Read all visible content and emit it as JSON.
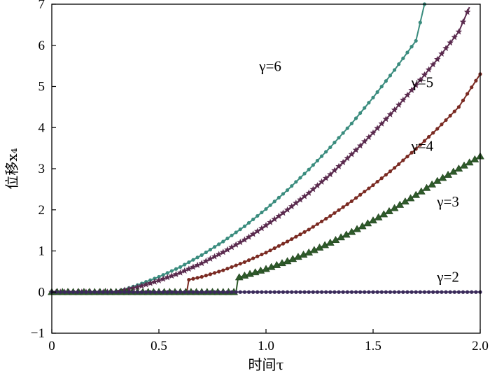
{
  "chart_data": {
    "type": "line",
    "xlabel": "时间τ",
    "ylabel": "位移x₄",
    "xlim": [
      0,
      2.0
    ],
    "ylim": [
      -1,
      7
    ],
    "x_ticks": [
      "0",
      "0.5",
      "1.0",
      "1.5",
      "2.0"
    ],
    "y_ticks": [
      "−1",
      "0",
      "1",
      "2",
      "3",
      "4",
      "5",
      "6",
      "7"
    ],
    "grid": false,
    "series": [
      {
        "name": "γ=6",
        "color": "#3a8c7e",
        "marker": "circle",
        "x": [
          0,
          0.3,
          0.35,
          0.4,
          0.5,
          0.6,
          0.7,
          0.8,
          0.9,
          1.0,
          1.1,
          1.2,
          1.3,
          1.4,
          1.5,
          1.6,
          1.7,
          1.74
        ],
        "y": [
          0,
          0,
          0.08,
          0.17,
          0.37,
          0.61,
          0.9,
          1.23,
          1.6,
          2.02,
          2.48,
          2.98,
          3.52,
          4.1,
          4.73,
          5.4,
          6.11,
          7.0
        ]
      },
      {
        "name": "γ=5",
        "color": "#5a2a4e",
        "marker": "star",
        "x": [
          0,
          0.3,
          0.4,
          0.5,
          0.6,
          0.7,
          0.8,
          0.9,
          1.0,
          1.1,
          1.2,
          1.3,
          1.4,
          1.5,
          1.6,
          1.7,
          1.8,
          1.9,
          1.95
        ],
        "y": [
          0,
          0,
          0.12,
          0.28,
          0.47,
          0.7,
          0.97,
          1.27,
          1.62,
          2.0,
          2.41,
          2.86,
          3.35,
          3.87,
          4.43,
          5.03,
          5.66,
          6.33,
          6.93
        ]
      },
      {
        "name": "γ=4",
        "color": "#7a2a22",
        "marker": "circle",
        "x": [
          0,
          0.63,
          0.64,
          0.7,
          0.8,
          0.9,
          1.0,
          1.1,
          1.2,
          1.3,
          1.4,
          1.5,
          1.6,
          1.7,
          1.8,
          1.9,
          2.0
        ],
        "y": [
          0,
          0,
          0.3,
          0.37,
          0.53,
          0.73,
          0.96,
          1.23,
          1.52,
          1.85,
          2.21,
          2.6,
          3.02,
          3.48,
          3.97,
          4.5,
          5.3
        ]
      },
      {
        "name": "γ=3",
        "color": "#2e5a2a",
        "marker": "triangle",
        "x": [
          0,
          0.86,
          0.87,
          0.95,
          1.0,
          1.1,
          1.2,
          1.3,
          1.4,
          1.5,
          1.6,
          1.7,
          1.8,
          1.9,
          2.0
        ],
        "y": [
          0,
          0,
          0.35,
          0.48,
          0.56,
          0.75,
          0.96,
          1.2,
          1.46,
          1.74,
          2.04,
          2.36,
          2.7,
          3.0,
          3.3
        ]
      },
      {
        "name": "γ=2",
        "color": "#3a2a5a",
        "marker": "circle",
        "x": [
          0,
          2.0
        ],
        "y": [
          0,
          0
        ]
      }
    ]
  }
}
